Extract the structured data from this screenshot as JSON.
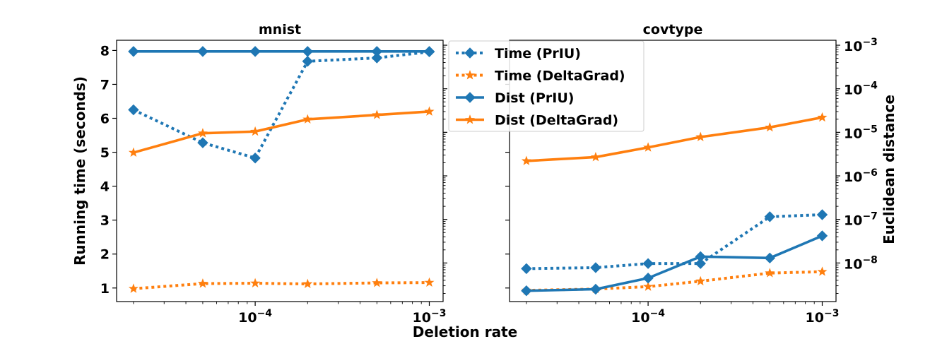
{
  "colors": {
    "prliu": "#1f77b4",
    "deltagrad": "#ff7f0e"
  },
  "figure": {
    "xlabel": "Deletion rate",
    "ylabel_left": "Running time (seconds)",
    "ylabel_right": "Euclidean distance"
  },
  "legend": {
    "placement": "top-center",
    "entries": [
      {
        "label": "Time (PrIU)",
        "color": "#1f77b4",
        "linestyle": "dotted",
        "marker": "diamond"
      },
      {
        "label": "Time (DeltaGrad)",
        "color": "#ff7f0e",
        "linestyle": "dotted",
        "marker": "star"
      },
      {
        "label": "Dist (PrIU)",
        "color": "#1f77b4",
        "linestyle": "solid",
        "marker": "diamond"
      },
      {
        "label": "Dist (DeltaGrad)",
        "color": "#ff7f0e",
        "linestyle": "solid",
        "marker": "star"
      }
    ]
  },
  "chart_data": [
    {
      "type": "line",
      "title": "mnist",
      "x_scale": "log",
      "xlim": [
        1.6e-05,
        0.0012
      ],
      "x_ticks": [
        0.0001,
        0.001
      ],
      "x_tick_labels": [
        "10^-4",
        "10^-3"
      ],
      "ylim": [
        0.6,
        8.3
      ],
      "y_ticks": [
        1,
        2,
        3,
        4,
        5,
        6,
        7,
        8
      ],
      "y_tick_labels": [
        "1",
        "2",
        "3",
        "4",
        "5",
        "6",
        "7",
        "8"
      ],
      "x": [
        2e-05,
        5e-05,
        0.0001,
        0.0002,
        0.0005,
        0.001
      ],
      "series": [
        {
          "name": "Time (PrIU)",
          "axis": "left",
          "linestyle": "dotted",
          "marker": "diamond",
          "color": "#1f77b4",
          "values": [
            6.25,
            5.28,
            4.83,
            7.68,
            7.78,
            7.96
          ]
        },
        {
          "name": "Time (DeltaGrad)",
          "axis": "left",
          "linestyle": "dotted",
          "marker": "star",
          "color": "#ff7f0e",
          "values": [
            0.98,
            1.13,
            1.14,
            1.12,
            1.15,
            1.16
          ]
        },
        {
          "name": "Dist (PrIU)",
          "axis": "left",
          "linestyle": "solid",
          "marker": "diamond",
          "color": "#1f77b4",
          "values": [
            7.97,
            7.97,
            7.97,
            7.97,
            7.97,
            7.97
          ]
        },
        {
          "name": "Dist (DeltaGrad)",
          "axis": "left",
          "linestyle": "solid",
          "marker": "star",
          "color": "#ff7f0e",
          "values": [
            4.99,
            5.56,
            5.61,
            5.97,
            6.1,
            6.2
          ]
        }
      ]
    },
    {
      "type": "line",
      "title": "covtype",
      "x_scale": "log",
      "xlim": [
        1.6e-05,
        0.0012
      ],
      "x_ticks": [
        0.0001,
        0.001
      ],
      "x_tick_labels": [
        "10^-4",
        "10^-3"
      ],
      "ylim_left": [
        0.6,
        8.3
      ],
      "y_scale_right": "log",
      "ylim_right": [
        1.3e-09,
        0.0013
      ],
      "y_ticks_right": [
        1e-08,
        1e-07,
        1e-06,
        1e-05,
        0.0001,
        0.001
      ],
      "y_tick_labels_right": [
        "10^-8",
        "10^-7",
        "10^-6",
        "10^-5",
        "10^-4",
        "10^-3"
      ],
      "x": [
        2e-05,
        5e-05,
        0.0001,
        0.0002,
        0.0005,
        0.001
      ],
      "series": [
        {
          "name": "Time (PrIU)",
          "axis": "left",
          "linestyle": "dotted",
          "marker": "diamond",
          "color": "#1f77b4",
          "values": [
            1.57,
            1.6,
            1.72,
            1.72,
            3.1,
            3.16
          ]
        },
        {
          "name": "Time (DeltaGrad)",
          "axis": "left",
          "linestyle": "dotted",
          "marker": "star",
          "color": "#ff7f0e",
          "values": [
            0.93,
            0.97,
            1.04,
            1.2,
            1.44,
            1.48
          ]
        },
        {
          "name": "Dist (PrIU)",
          "axis": "right",
          "linestyle": "solid",
          "marker": "diamond",
          "color": "#1f77b4",
          "values": [
            2.3e-09,
            2.5e-09,
            4.5e-09,
            1.4e-08,
            1.3e-08,
            4.2e-08
          ]
        },
        {
          "name": "Dist (DeltaGrad)",
          "axis": "right",
          "linestyle": "solid",
          "marker": "star",
          "color": "#ff7f0e",
          "values": [
            2.2e-06,
            2.7e-06,
            4.5e-06,
            7.8e-06,
            1.3e-05,
            2.2e-05
          ]
        }
      ]
    }
  ]
}
